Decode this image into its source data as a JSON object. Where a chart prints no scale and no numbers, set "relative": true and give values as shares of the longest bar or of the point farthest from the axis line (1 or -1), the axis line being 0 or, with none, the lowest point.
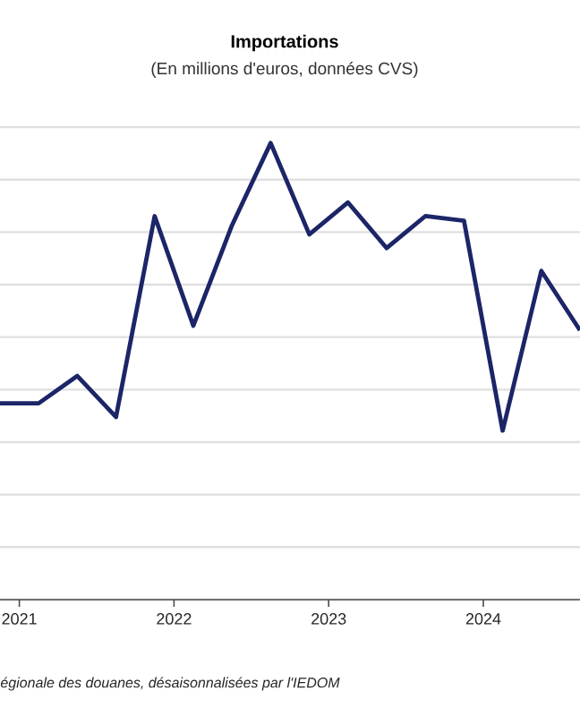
{
  "chart_data": {
    "type": "line",
    "title": "Importations",
    "subtitle": "(En millions  d'euros, données CVS)",
    "relative": true,
    "grid": "y",
    "x": [
      2020.875,
      2021.125,
      2021.375,
      2021.625,
      2021.875,
      2022.125,
      2022.375,
      2022.625,
      2022.875,
      2023.125,
      2023.375,
      2023.625,
      2023.875,
      2024.125,
      2024.375,
      2024.625
    ],
    "xlim": [
      2020.875,
      2024.625
    ],
    "xticks": [
      2021,
      2022,
      2023,
      2024
    ],
    "series": [
      {
        "color": "#1c2567",
        "values": [
          0.43,
          0.43,
          0.49,
          0.4,
          0.84,
          0.6,
          0.82,
          1.0,
          0.8,
          0.87,
          0.77,
          0.84,
          0.83,
          0.37,
          0.72,
          0.59
        ]
      }
    ],
    "annotations": [
      "égionale des douanes, désaisonnalisées par l'IEDOM"
    ]
  }
}
